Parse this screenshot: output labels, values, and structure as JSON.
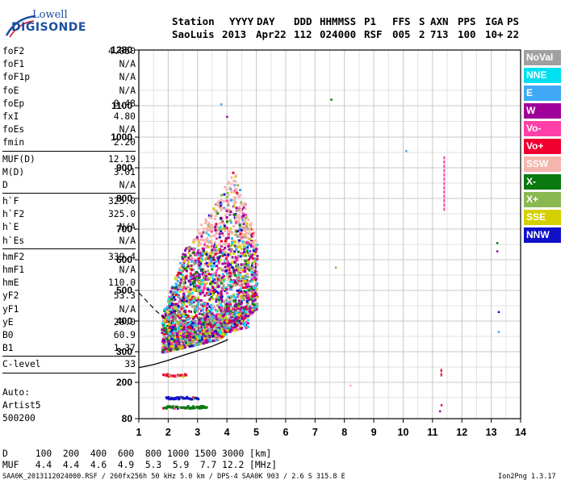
{
  "logo": {
    "line1": "Lowell",
    "line2": "DIGISONDE"
  },
  "header": {
    "labels": [
      "Station",
      "YYYY",
      "DAY",
      "DDD",
      "HHMMSS",
      "P1",
      "FFS",
      "S",
      "AXN",
      "PPS",
      "IGA",
      "PS"
    ],
    "values": [
      "SaoLuis",
      "2013",
      "Apr22",
      "112",
      "024000",
      "RSF",
      "005",
      "2",
      "713",
      "100",
      "10+",
      "22"
    ]
  },
  "params": {
    "group1": [
      {
        "name": "foF2",
        "value": "4.050"
      },
      {
        "name": "foF1",
        "value": "N/A"
      },
      {
        "name": "foF1p",
        "value": "N/A"
      },
      {
        "name": "foE",
        "value": "N/A"
      },
      {
        "name": "foEp",
        "value": "0.48"
      },
      {
        "name": "fxI",
        "value": "4.80"
      },
      {
        "name": "foEs",
        "value": "N/A"
      },
      {
        "name": "fmin",
        "value": "2.20"
      }
    ],
    "group2": [
      {
        "name": "MUF(D)",
        "value": "12.19"
      },
      {
        "name": "M(D)",
        "value": "3.01"
      },
      {
        "name": "D",
        "value": "N/A"
      }
    ],
    "group3": [
      {
        "name": "h`F",
        "value": "325.0"
      },
      {
        "name": "h`F2",
        "value": "325.0"
      },
      {
        "name": "h`E",
        "value": "N/A"
      },
      {
        "name": "h`Es",
        "value": "N/A"
      }
    ],
    "group4": [
      {
        "name": "hmF2",
        "value": "339.4"
      },
      {
        "name": "hmF1",
        "value": "N/A"
      },
      {
        "name": "hmE",
        "value": "110.0"
      },
      {
        "name": "yF2",
        "value": "53.3"
      },
      {
        "name": "yF1",
        "value": "N/A"
      },
      {
        "name": "yE",
        "value": "20.0"
      },
      {
        "name": "B0",
        "value": "60.9"
      },
      {
        "name": "B1",
        "value": "1.37"
      }
    ],
    "group5": [
      {
        "name": "C-level",
        "value": "33"
      }
    ]
  },
  "auto": {
    "line1": "Auto:",
    "line2": "Artist5",
    "line3": "500200"
  },
  "mufTable": {
    "row1": "D     100  200  400  600  800 1000 1500 3000 [km]",
    "row2": "MUF   4.4  4.4  4.6  4.9  5.3  5.9  7.7 12.2 [MHz]"
  },
  "footer": {
    "left": "SAA0K_2013112024000.RSF / 260fx256h 50 kHz 5.0 km / DPS-4 SAA0K 903 / 2.6 S 315.8 E",
    "right": "Ion2Png 1.3.17"
  },
  "legend": [
    {
      "label": "NoVal",
      "bg": "#a0a0a0",
      "fg": "#ffffff"
    },
    {
      "label": "NNE",
      "bg": "#00e0f0",
      "fg": "#ffffff"
    },
    {
      "label": "E",
      "bg": "#3fa9f5",
      "fg": "#ffffff"
    },
    {
      "label": "W",
      "bg": "#a0009a",
      "fg": "#ffffff"
    },
    {
      "label": "Vo-",
      "bg": "#ff3fa8",
      "fg": "#ffffff"
    },
    {
      "label": "Vo+",
      "bg": "#f00030",
      "fg": "#ffffff"
    },
    {
      "label": "SSW",
      "bg": "#f5b5ad",
      "fg": "#ffffff"
    },
    {
      "label": "X-",
      "bg": "#0a7a10",
      "fg": "#ffffff"
    },
    {
      "label": "X+",
      "bg": "#8ab850",
      "fg": "#ffffff"
    },
    {
      "label": "SSE",
      "bg": "#d4d000",
      "fg": "#ffffff"
    },
    {
      "label": "NNW",
      "bg": "#1010c8",
      "fg": "#ffffff"
    }
  ],
  "chart_data": {
    "type": "scatter",
    "title": "",
    "xlabel": "",
    "ylabel": "",
    "xlim": [
      1,
      14
    ],
    "ylim": [
      80,
      1280
    ],
    "xticks": [
      1,
      2,
      3,
      4,
      5,
      6,
      7,
      8,
      9,
      10,
      11,
      12,
      13,
      14
    ],
    "yticks": [
      80,
      200,
      300,
      400,
      500,
      600,
      700,
      800,
      900,
      1000,
      1100,
      1280
    ],
    "grid": true,
    "isolated_points": [
      {
        "x": 3.8,
        "y": 1105,
        "c": "#3fa9f5"
      },
      {
        "x": 4.0,
        "y": 1065,
        "c": "#a0009a"
      },
      {
        "x": 7.55,
        "y": 1120,
        "c": "#0a7a10"
      },
      {
        "x": 10.1,
        "y": 955,
        "c": "#3fa9f5"
      },
      {
        "x": 7.7,
        "y": 575,
        "c": "#8ab850"
      },
      {
        "x": 8.2,
        "y": 190,
        "c": "#f5b5ad"
      },
      {
        "x": 13.2,
        "y": 655,
        "c": "#0a7a10"
      },
      {
        "x": 13.2,
        "y": 628,
        "c": "#a0009a"
      },
      {
        "x": 13.25,
        "y": 430,
        "c": "#1010c8"
      },
      {
        "x": 13.25,
        "y": 365,
        "c": "#3fa9f5"
      },
      {
        "x": 11.3,
        "y": 125,
        "c": "#f00030"
      },
      {
        "x": 11.25,
        "y": 105,
        "c": "#a0009a"
      }
    ],
    "vertical_streaks": [
      {
        "x": 11.4,
        "y_from": 770,
        "y_to": 940,
        "c": "#ff3fa8"
      },
      {
        "x": 11.3,
        "y_from": 230,
        "y_to": 255,
        "c": "#f00030"
      }
    ],
    "bands": [
      {
        "x_from": 1.8,
        "x_to": 2.6,
        "y": 225,
        "c": "#f00030"
      },
      {
        "x_from": 1.9,
        "x_to": 3.0,
        "y": 150,
        "c": "#1010c8"
      },
      {
        "x_from": 1.8,
        "x_to": 3.3,
        "y": 120,
        "c": "#0a7a10"
      }
    ],
    "trace": {
      "x": [
        1.0,
        1.5,
        2.0,
        2.5,
        3.0,
        3.5,
        3.8,
        4.0,
        4.02
      ],
      "y": [
        248,
        258,
        272,
        288,
        303,
        318,
        330,
        338,
        342
      ]
    },
    "trace_extrapolation": {
      "x": [
        1.0,
        1.3,
        1.6,
        1.9,
        2.05
      ],
      "y": [
        492,
        462,
        432,
        408,
        395
      ]
    }
  }
}
